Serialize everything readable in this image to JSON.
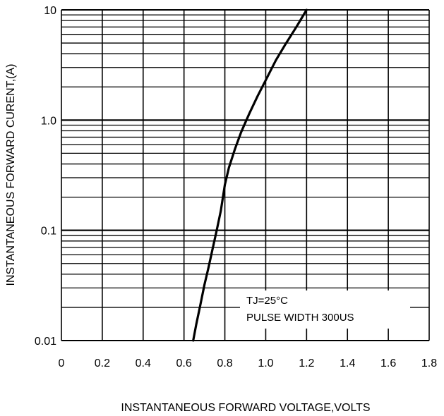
{
  "chart_data": {
    "type": "line",
    "xlabel": "INSTANTANEOUS FORWARD VOLTAGE,VOLTS",
    "ylabel": "INSTANTANEOUS FORWARD  CURENT,(A)",
    "xlim": [
      0,
      1.8
    ],
    "ylim": [
      0.01,
      10
    ],
    "yscale": "log",
    "grid": true,
    "x_ticks": [
      "0",
      "0.2",
      "0.4",
      "0.6",
      "0.8",
      "1.0",
      "1.2",
      "1.4",
      "1.6",
      "1.8"
    ],
    "y_ticks": [
      "0.01",
      "0.1",
      "1.0",
      "10"
    ],
    "annotations": [
      "TJ=25°C",
      "PULSE WIDTH 300US"
    ],
    "series": [
      {
        "x": [
          0.645,
          0.66,
          0.68,
          0.7,
          0.72,
          0.74,
          0.76,
          0.78,
          0.8,
          0.82,
          0.85,
          0.88,
          0.92,
          0.96,
          1.0,
          1.05,
          1.1,
          1.15,
          1.2
        ],
        "y": [
          0.01,
          0.014,
          0.021,
          0.032,
          0.046,
          0.068,
          0.1,
          0.15,
          0.26,
          0.37,
          0.55,
          0.78,
          1.15,
          1.65,
          2.3,
          3.5,
          5.0,
          7.0,
          10.0
        ]
      }
    ],
    "colors": {
      "line": "#000000",
      "grid": "#000000",
      "background": "#ffffff"
    }
  }
}
